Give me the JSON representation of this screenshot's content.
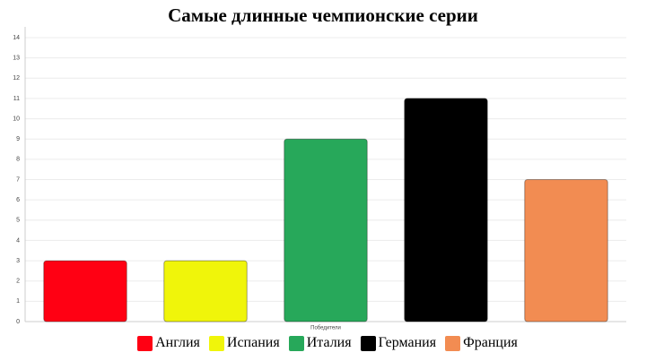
{
  "chart_data": {
    "type": "bar",
    "title": "Самые длинные чемпионские серии",
    "categories": [
      "Победители"
    ],
    "series": [
      {
        "name": "Англия",
        "color": "#ff0013",
        "values": [
          3
        ]
      },
      {
        "name": "Испания",
        "color": "#f0f50a",
        "values": [
          3
        ]
      },
      {
        "name": "Италия",
        "color": "#27a85a",
        "values": [
          9
        ]
      },
      {
        "name": "Германия",
        "color": "#000000",
        "values": [
          11
        ]
      },
      {
        "name": "Франция",
        "color": "#f28c52",
        "values": [
          7
        ]
      }
    ],
    "ylim": [
      0,
      14
    ],
    "yticks": [
      0,
      1,
      2,
      3,
      4,
      5,
      6,
      7,
      8,
      9,
      10,
      11,
      12,
      13,
      14
    ],
    "grid": true,
    "legend": "bottom"
  }
}
